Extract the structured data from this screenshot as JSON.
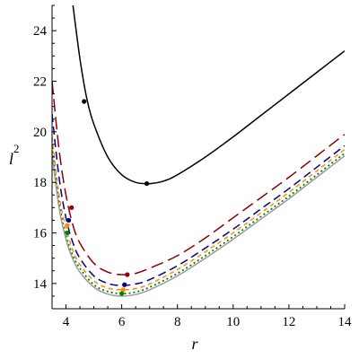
{
  "chart_data": {
    "type": "line",
    "xlabel": "r",
    "ylabel": "l",
    "ylabel_superscript": "2",
    "xlim": [
      3.5,
      14
    ],
    "ylim": [
      13,
      25
    ],
    "x_ticks": [
      "4",
      "6",
      "8",
      "10",
      "12",
      "14"
    ],
    "y_ticks": [
      "14",
      "16",
      "18",
      "20",
      "22",
      "24"
    ],
    "grid": false,
    "legend": "none",
    "series": [
      {
        "color": "#000000",
        "dash": "solid",
        "x": [
          4.25,
          4.5,
          4.75,
          5.0,
          5.5,
          6.0,
          6.5,
          7.0,
          7.5,
          8.0,
          9.0,
          10.0,
          11.0,
          12.0,
          13.0,
          14.0
        ],
        "y": [
          25.0,
          22.9,
          21.3,
          20.3,
          19.0,
          18.3,
          18.0,
          17.95,
          18.05,
          18.3,
          19.0,
          19.8,
          20.65,
          21.5,
          22.35,
          23.2
        ],
        "markers": [
          {
            "x": 4.65,
            "y": 21.2
          },
          {
            "x": 6.9,
            "y": 17.95
          }
        ]
      },
      {
        "color": "#8b0000",
        "dash": "long",
        "x": [
          3.5,
          3.75,
          4.0,
          4.25,
          4.5,
          5.0,
          5.5,
          6.0,
          6.5,
          7.0,
          8.0,
          9.0,
          10.0,
          11.0,
          12.0,
          13.0,
          14.0
        ],
        "y": [
          22.0,
          19.3,
          17.5,
          16.3,
          15.6,
          14.8,
          14.45,
          14.35,
          14.4,
          14.6,
          15.1,
          15.8,
          16.6,
          17.4,
          18.2,
          19.05,
          19.9
        ],
        "markers": [
          {
            "x": 4.2,
            "y": 17.0
          },
          {
            "x": 6.2,
            "y": 14.35
          }
        ]
      },
      {
        "color": "#00008b",
        "dash": "medium",
        "x": [
          3.5,
          3.75,
          4.0,
          4.25,
          4.5,
          5.0,
          5.5,
          6.0,
          6.5,
          7.0,
          8.0,
          9.0,
          10.0,
          11.0,
          12.0,
          13.0,
          14.0
        ],
        "y": [
          20.7,
          18.2,
          16.6,
          15.6,
          15.0,
          14.3,
          14.0,
          13.92,
          13.98,
          14.15,
          14.7,
          15.4,
          16.15,
          16.95,
          17.75,
          18.6,
          19.45
        ],
        "markers": [
          {
            "x": 4.1,
            "y": 16.5
          },
          {
            "x": 6.1,
            "y": 13.95
          }
        ]
      },
      {
        "color": "#ff8c00",
        "dash": "short",
        "x": [
          3.5,
          3.75,
          4.0,
          4.25,
          4.5,
          5.0,
          5.5,
          6.0,
          6.5,
          7.0,
          8.0,
          9.0,
          10.0,
          11.0,
          12.0,
          13.0,
          14.0
        ],
        "y": [
          19.8,
          17.5,
          16.2,
          15.3,
          14.75,
          14.1,
          13.82,
          13.75,
          13.8,
          13.98,
          14.55,
          15.25,
          16.0,
          16.8,
          17.6,
          18.45,
          19.3
        ],
        "markers": [
          {
            "x": 4.05,
            "y": 16.3
          },
          {
            "x": 6.05,
            "y": 13.75
          }
        ]
      },
      {
        "color": "#008000",
        "dash": "dot",
        "x": [
          3.5,
          3.75,
          4.0,
          4.25,
          4.5,
          5.0,
          5.5,
          6.0,
          6.5,
          7.0,
          8.0,
          9.0,
          10.0,
          11.0,
          12.0,
          13.0,
          14.0
        ],
        "y": [
          19.4,
          17.2,
          15.9,
          15.1,
          14.6,
          13.95,
          13.68,
          13.6,
          13.66,
          13.85,
          14.4,
          15.1,
          15.85,
          16.65,
          17.45,
          18.3,
          19.15
        ],
        "markers": [
          {
            "x": 4.05,
            "y": 16.0
          },
          {
            "x": 6.0,
            "y": 13.6
          }
        ]
      },
      {
        "color": "#9a9a9a",
        "dash": "solid",
        "x": [
          3.5,
          3.75,
          4.0,
          4.25,
          4.5,
          5.0,
          5.5,
          6.0,
          6.5,
          7.0,
          8.0,
          9.0,
          10.0,
          11.0,
          12.0,
          13.0,
          14.0
        ],
        "y": [
          19.1,
          17.0,
          15.75,
          14.95,
          14.45,
          13.85,
          13.58,
          13.5,
          13.56,
          13.75,
          14.3,
          15.0,
          15.75,
          16.55,
          17.35,
          18.2,
          19.05
        ],
        "markers": []
      }
    ]
  }
}
